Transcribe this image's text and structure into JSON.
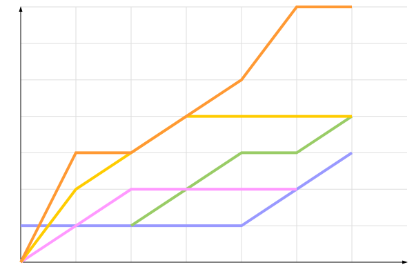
{
  "chart_data": {
    "type": "line",
    "title": "",
    "xlabel": "",
    "ylabel": "",
    "x": [
      0,
      1,
      2,
      3,
      4,
      5,
      6
    ],
    "xlim": [
      0,
      7
    ],
    "ylim": [
      0,
      7
    ],
    "grid": true,
    "legend": "none",
    "series": [
      {
        "color": "#9999ff",
        "points": [
          [
            0,
            1
          ],
          [
            1,
            1
          ],
          [
            2,
            1
          ],
          [
            3,
            1
          ],
          [
            4,
            1
          ],
          [
            5,
            2
          ],
          [
            6,
            3
          ]
        ]
      },
      {
        "color": "#99cc66",
        "points": [
          [
            2,
            1
          ],
          [
            3,
            2
          ],
          [
            4,
            3
          ],
          [
            5,
            3
          ],
          [
            6,
            4
          ]
        ]
      },
      {
        "color": "#ff99ff",
        "points": [
          [
            0,
            0
          ],
          [
            1,
            1
          ],
          [
            2,
            2
          ],
          [
            3,
            2
          ],
          [
            4,
            2
          ],
          [
            5,
            2
          ]
        ]
      },
      {
        "color": "#ffcc00",
        "points": [
          [
            0,
            0
          ],
          [
            1,
            2
          ],
          [
            2,
            3
          ],
          [
            3,
            4
          ],
          [
            4,
            4
          ],
          [
            5,
            4
          ],
          [
            6,
            4
          ]
        ]
      },
      {
        "color": "#ff9933",
        "points": [
          [
            0,
            0
          ],
          [
            1,
            3
          ],
          [
            2,
            3
          ],
          [
            3,
            4
          ],
          [
            4,
            5
          ],
          [
            5,
            7
          ],
          [
            6,
            7
          ]
        ]
      }
    ]
  }
}
